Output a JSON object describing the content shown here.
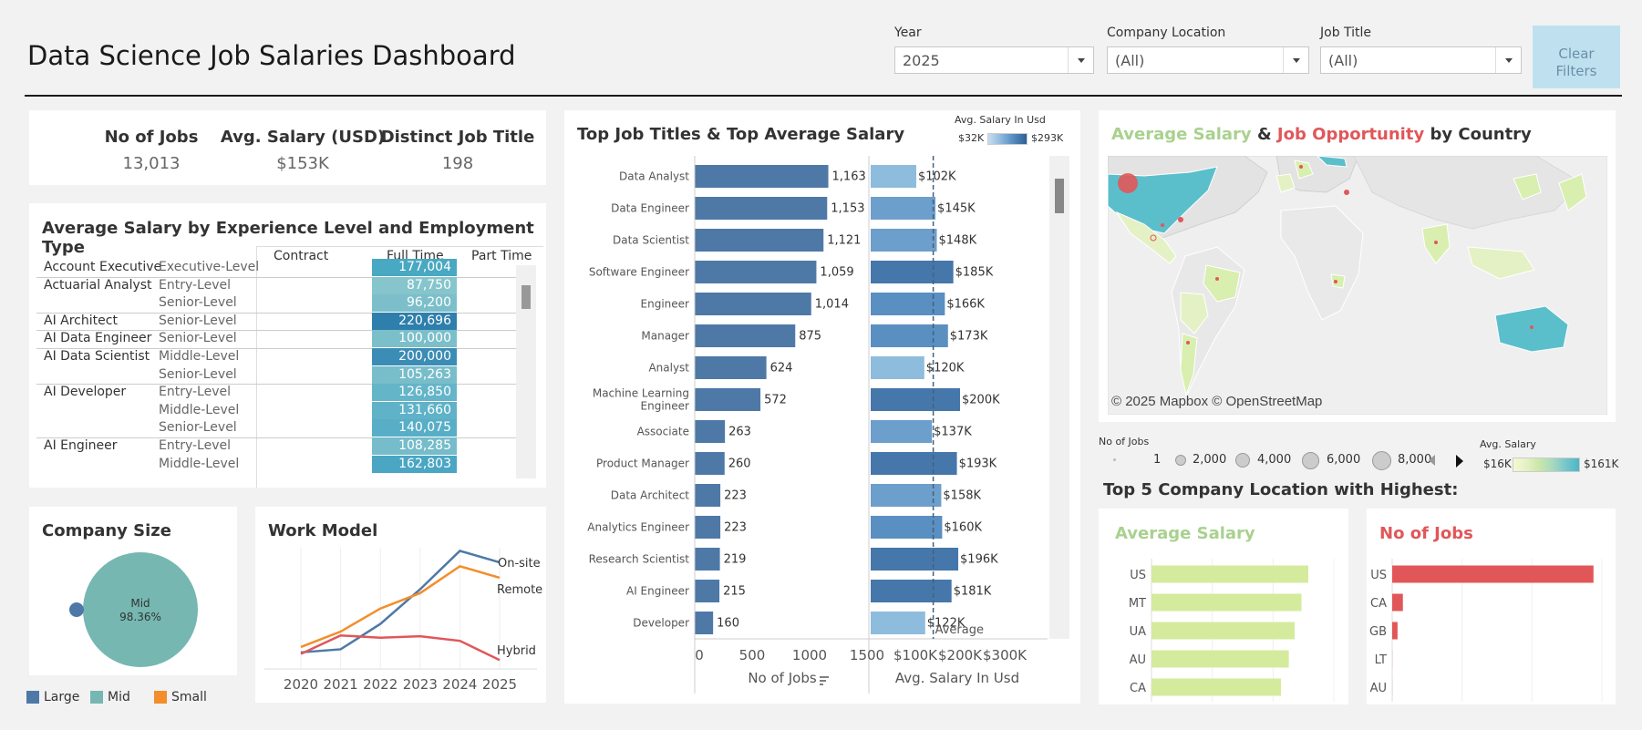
{
  "header": {
    "title": "Data Science Job Salaries Dashboard",
    "filters": [
      {
        "label": "Year",
        "value": "2025"
      },
      {
        "label": "Company Location",
        "value": "(All)"
      },
      {
        "label": "Job Title",
        "value": "(All)"
      }
    ],
    "clear_filters": "Clear Filters"
  },
  "kpis": [
    {
      "label": "No of Jobs",
      "value": "13,013"
    },
    {
      "label": "Avg. Salary (USD)",
      "value": "$153K"
    },
    {
      "label": "Distinct Job Title",
      "value": "198"
    }
  ],
  "exp_table": {
    "title": "Average Salary by Experience Level and Employment Type",
    "columns": [
      "Contract",
      "Full Time",
      "Part Time"
    ],
    "rows": [
      {
        "title": "Account Executive",
        "level": "Executive-Level",
        "ft": "177,004",
        "color": "#49a8c2"
      },
      {
        "title": "Actuarial Analyst",
        "level": "Entry-Level",
        "ft": "87,750",
        "color": "#86c5cc"
      },
      {
        "title": "",
        "level": "Senior-Level",
        "ft": "96,200",
        "color": "#7cbfca"
      },
      {
        "title": "AI Architect",
        "level": "Senior-Level",
        "ft": "220,696",
        "color": "#2e7fac"
      },
      {
        "title": "AI Data Engineer",
        "level": "Senior-Level",
        "ft": "100,000",
        "color": "#7bbfca"
      },
      {
        "title": "AI Data Scientist",
        "level": "Middle-Level",
        "ft": "200,000",
        "color": "#3c8db5"
      },
      {
        "title": "",
        "level": "Senior-Level",
        "ft": "105,263",
        "color": "#78bdca"
      },
      {
        "title": "AI Developer",
        "level": "Entry-Level",
        "ft": "126,850",
        "color": "#64b5c8"
      },
      {
        "title": "",
        "level": "Middle-Level",
        "ft": "131,660",
        "color": "#5fb2c7"
      },
      {
        "title": "",
        "level": "Senior-Level",
        "ft": "140,075",
        "color": "#58aec6"
      },
      {
        "title": "AI Engineer",
        "level": "Entry-Level",
        "ft": "108,285",
        "color": "#76bcca"
      },
      {
        "title": "",
        "level": "Middle-Level",
        "ft": "162,803",
        "color": "#4aa6c3"
      }
    ]
  },
  "company_size": {
    "title": "Company Size",
    "center_label": "Mid",
    "center_value": "98.36%",
    "legend": [
      {
        "name": "Large",
        "color": "#4e79a7"
      },
      {
        "name": "Mid",
        "color": "#76b7b2"
      },
      {
        "name": "Small",
        "color": "#f28e2b"
      }
    ]
  },
  "work_model": {
    "title": "Work Model"
  },
  "top_jobs": {
    "title": "Top Job Titles & Top Average Salary",
    "legend_title": "Avg. Salary In Usd",
    "legend_min": "$32K",
    "legend_max": "$293K",
    "xlabel_jobs": "No of Jobs",
    "xlabel_salary": "Avg. Salary In Usd",
    "avg_label": "Average"
  },
  "map": {
    "title_part1": "Average Salary",
    "title_part2": "&",
    "title_part3": "Job Opportunity",
    "title_part4": "by Country",
    "attribution": "© 2025 Mapbox © OpenStreetMap",
    "size_legend_title": "No of Jobs",
    "size_legend": [
      "1",
      "2,000",
      "4,000",
      "6,000",
      "8,000"
    ],
    "color_legend_title": "Avg. Salary",
    "color_min": "$16K",
    "color_max": "$161K"
  },
  "top5": {
    "title": "Top 5 Company Location with Highest:",
    "avg_title": "Average Salary",
    "jobs_title": "No of Jobs"
  },
  "chart_data": [
    {
      "type": "pie",
      "title": "Company Size",
      "categories": [
        "Large",
        "Mid",
        "Small"
      ],
      "values": [
        1.64,
        98.36,
        0
      ]
    },
    {
      "type": "line",
      "title": "Work Model",
      "x": [
        2020,
        2021,
        2022,
        2023,
        2024,
        2025
      ],
      "series": [
        {
          "name": "On-site",
          "color": "#4e79a7",
          "values": [
            80,
            120,
            450,
            900,
            1400,
            1250
          ]
        },
        {
          "name": "Remote",
          "color": "#f28e2b",
          "values": [
            150,
            350,
            650,
            850,
            1200,
            1050
          ]
        },
        {
          "name": "Hybrid",
          "color": "#e15759",
          "values": [
            60,
            300,
            270,
            290,
            230,
            -20
          ]
        }
      ],
      "ylim": [
        -100,
        1500
      ]
    },
    {
      "type": "bar",
      "title": "Top Job Titles & Top Average Salary",
      "xlabel": "No of Jobs",
      "categories": [
        "Data Analyst",
        "Data Engineer",
        "Data Scientist",
        "Software Engineer",
        "Engineer",
        "Manager",
        "Analyst",
        "Machine Learning Engineer",
        "Associate",
        "Product Manager",
        "Data Architect",
        "Analytics Engineer",
        "Research Scientist",
        "AI Engineer",
        "Developer"
      ],
      "values": [
        1163,
        1153,
        1121,
        1059,
        1014,
        875,
        624,
        572,
        263,
        260,
        223,
        223,
        219,
        215,
        160
      ],
      "labels": [
        "1,163",
        "1,153",
        "1,121",
        "1,059",
        "1,014",
        "875",
        "624",
        "572",
        "263",
        "260",
        "223",
        "223",
        "219",
        "215",
        "160"
      ],
      "xticks": [
        "0",
        "500",
        "1000",
        "1500"
      ],
      "xlim": [
        0,
        1500
      ]
    },
    {
      "type": "bar",
      "title": "Top Job Titles & Top Average Salary",
      "xlabel": "Avg. Salary In Usd",
      "categories": [
        "Data Analyst",
        "Data Engineer",
        "Data Scientist",
        "Software Engineer",
        "Engineer",
        "Manager",
        "Analyst",
        "Machine Learning Engineer",
        "Associate",
        "Product Manager",
        "Data Architect",
        "Analytics Engineer",
        "Research Scientist",
        "AI Engineer",
        "Developer"
      ],
      "values": [
        102,
        145,
        148,
        185,
        166,
        173,
        120,
        200,
        137,
        193,
        158,
        160,
        196,
        181,
        122
      ],
      "labels": [
        "$102K",
        "$145K",
        "$148K",
        "$185K",
        "$166K",
        "$173K",
        "$120K",
        "$200K",
        "$137K",
        "$193K",
        "$158K",
        "$160K",
        "$196K",
        "$181K",
        "$122K"
      ],
      "xticks": [
        "$100K",
        "$200K",
        "$300K"
      ],
      "xlim": [
        0,
        400
      ],
      "average": 140
    },
    {
      "type": "bar",
      "title": "Average Salary",
      "categories": [
        "US",
        "MT",
        "UA",
        "AU",
        "CA"
      ],
      "values": [
        161,
        154,
        147,
        141,
        133
      ]
    },
    {
      "type": "bar",
      "title": "No of Jobs",
      "categories": [
        "US",
        "CA",
        "GB",
        "LT",
        "AU"
      ],
      "values": [
        11300,
        600,
        300,
        5,
        3
      ]
    }
  ]
}
